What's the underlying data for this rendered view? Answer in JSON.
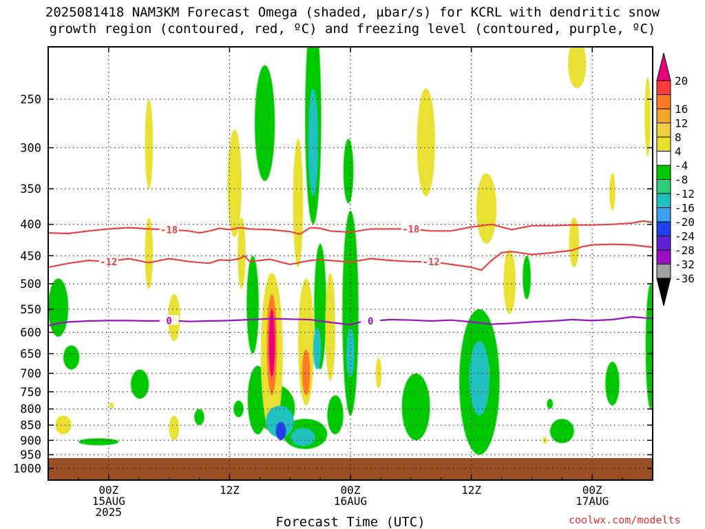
{
  "header": {
    "title_line1": "2025081418 NAM3KM Forecast Omega (shaded, µbar/s) for KCRL with dendritic snow",
    "title_line2": "growth region (contoured, red, ºC) and freezing level (contoured, purple, ºC)"
  },
  "footer": {
    "credit": "coolwx.com/modelts"
  },
  "chart_data": {
    "type": "heatmap",
    "title": "2025081418 NAM3KM Forecast Omega (shaded, µbar/s) for KCRL with dendritic snow growth region (contoured, red, ºC) and freezing level (contoured, purple, ºC)",
    "xlabel": "Forecast Time (UTC)",
    "ylabel": "",
    "x_unit": "forecast hour from 2025-08-14 18Z",
    "xlim": [
      0,
      60
    ],
    "ylim": [
      1040,
      200
    ],
    "y_scale": "log-pressure, inverted",
    "x_ticks": [
      {
        "hour": 6,
        "lines": [
          "00Z",
          "15AUG",
          "2025"
        ]
      },
      {
        "hour": 18,
        "lines": [
          "12Z"
        ]
      },
      {
        "hour": 30,
        "lines": [
          "00Z",
          "16AUG"
        ]
      },
      {
        "hour": 42,
        "lines": [
          "12Z"
        ]
      },
      {
        "hour": 54,
        "lines": [
          "00Z",
          "17AUG"
        ]
      }
    ],
    "y_ticks": [
      "250",
      "300",
      "350",
      "400",
      "450",
      "500",
      "550",
      "600",
      "650",
      "700",
      "750",
      "800",
      "850",
      "900",
      "950",
      "1000"
    ],
    "grid": true,
    "legend": {
      "placement": "right",
      "labels": [
        "20",
        "16",
        "12",
        "8",
        "4",
        "-4",
        "-8",
        "-12",
        "-16",
        "-20",
        "-24",
        "-28",
        "-32",
        "-36"
      ],
      "colors": [
        "#e6007a",
        "#ff3a3a",
        "#ff7a22",
        "#f2a52a",
        "#f0d040",
        "#e8e030",
        "#ffffff",
        "#00c800",
        "#2fcc7a",
        "#20c0c0",
        "#3aa0ee",
        "#2040e8",
        "#6020d0",
        "#9a10c0",
        "#a0a0a0",
        "#000000"
      ]
    },
    "contours": [
      {
        "label": "-18",
        "color": "#ee4040",
        "points": [
          [
            0,
            413
          ],
          [
            2,
            414
          ],
          [
            4,
            410
          ],
          [
            6,
            407
          ],
          [
            8,
            405
          ],
          [
            10,
            407
          ],
          [
            12,
            408
          ],
          [
            14,
            410
          ],
          [
            15,
            413
          ],
          [
            16,
            410
          ],
          [
            17,
            406
          ],
          [
            18,
            408
          ],
          [
            19,
            405
          ],
          [
            20,
            407
          ],
          [
            22,
            408
          ],
          [
            24,
            411
          ],
          [
            25,
            415
          ],
          [
            26,
            405
          ],
          [
            27,
            406
          ],
          [
            28,
            410
          ],
          [
            30,
            412
          ],
          [
            32,
            407
          ],
          [
            34,
            407
          ],
          [
            36,
            407
          ],
          [
            38,
            410
          ],
          [
            40,
            410
          ],
          [
            42,
            404
          ],
          [
            44,
            400
          ],
          [
            46,
            408
          ],
          [
            48,
            402
          ],
          [
            50,
            402
          ],
          [
            52,
            401
          ],
          [
            54,
            401
          ],
          [
            56,
            400
          ],
          [
            58,
            398
          ],
          [
            59,
            395
          ],
          [
            60,
            397
          ]
        ]
      },
      {
        "label": "-12",
        "color": "#ee4040",
        "points": [
          [
            0,
            470
          ],
          [
            2,
            463
          ],
          [
            4,
            458
          ],
          [
            6,
            460
          ],
          [
            8,
            455
          ],
          [
            10,
            462
          ],
          [
            12,
            455
          ],
          [
            14,
            460
          ],
          [
            16,
            463
          ],
          [
            17,
            457
          ],
          [
            18,
            458
          ],
          [
            19,
            455
          ],
          [
            19.5,
            450
          ],
          [
            20,
            460
          ],
          [
            22,
            456
          ],
          [
            24,
            465
          ],
          [
            26,
            458
          ],
          [
            27,
            457
          ],
          [
            28,
            458
          ],
          [
            30,
            461
          ],
          [
            32,
            455
          ],
          [
            34,
            458
          ],
          [
            36,
            460
          ],
          [
            38,
            460
          ],
          [
            40,
            465
          ],
          [
            42,
            470
          ],
          [
            43,
            475
          ],
          [
            44,
            458
          ],
          [
            45,
            445
          ],
          [
            46,
            443
          ],
          [
            48,
            448
          ],
          [
            50,
            445
          ],
          [
            52,
            441
          ],
          [
            53,
            435
          ],
          [
            54,
            432
          ],
          [
            56,
            431
          ],
          [
            58,
            432
          ],
          [
            60,
            436
          ]
        ]
      },
      {
        "label": "0",
        "color": "#9a10c0",
        "points": [
          [
            0,
            585
          ],
          [
            1,
            580
          ],
          [
            2,
            577
          ],
          [
            4,
            575
          ],
          [
            6,
            574
          ],
          [
            8,
            574
          ],
          [
            10,
            575
          ],
          [
            12,
            574
          ],
          [
            14,
            576
          ],
          [
            16,
            575
          ],
          [
            18,
            574
          ],
          [
            20,
            572
          ],
          [
            22,
            570
          ],
          [
            24,
            571
          ],
          [
            26,
            572
          ],
          [
            28,
            578
          ],
          [
            30,
            583
          ],
          [
            31,
            577
          ],
          [
            32,
            575
          ],
          [
            34,
            572
          ],
          [
            36,
            573
          ],
          [
            38,
            575
          ],
          [
            40,
            573
          ],
          [
            42,
            577
          ],
          [
            44,
            582
          ],
          [
            46,
            580
          ],
          [
            48,
            577
          ],
          [
            50,
            575
          ],
          [
            52,
            572
          ],
          [
            54,
            574
          ],
          [
            56,
            572
          ],
          [
            58,
            566
          ],
          [
            60,
            570
          ]
        ]
      }
    ],
    "omega_regions": [
      {
        "level": "-4",
        "center": [
          1,
          550
        ],
        "spread": [
          1.0,
          60
        ]
      },
      {
        "level": "-4",
        "center": [
          2.3,
          660
        ],
        "spread": [
          0.8,
          30
        ]
      },
      {
        "level": "-4",
        "center": [
          9.1,
          730
        ],
        "spread": [
          0.9,
          40
        ]
      },
      {
        "level": "-4",
        "center": [
          5,
          905
        ],
        "spread": [
          2.0,
          12
        ]
      },
      {
        "level": "-4",
        "center": [
          21.5,
          280
        ],
        "spread": [
          1.0,
          60
        ]
      },
      {
        "level": "-4",
        "center": [
          20.3,
          550
        ],
        "spread": [
          0.6,
          100
        ]
      },
      {
        "level": "-4",
        "center": [
          20.8,
          780
        ],
        "spread": [
          1.0,
          100
        ]
      },
      {
        "level": "-4",
        "center": [
          26.3,
          290
        ],
        "spread": [
          0.8,
          110
        ]
      },
      {
        "level": "-12",
        "center": [
          26.3,
          300
        ],
        "spread": [
          0.5,
          60
        ]
      },
      {
        "level": "-4",
        "center": [
          27.0,
          560
        ],
        "spread": [
          0.6,
          130
        ]
      },
      {
        "level": "-12",
        "center": [
          26.7,
          640
        ],
        "spread": [
          0.4,
          50
        ]
      },
      {
        "level": "-4",
        "center": [
          29.8,
          330
        ],
        "spread": [
          0.5,
          40
        ]
      },
      {
        "level": "-4",
        "center": [
          30.0,
          600
        ],
        "spread": [
          0.8,
          220
        ]
      },
      {
        "level": "-12",
        "center": [
          30.0,
          650
        ],
        "spread": [
          0.4,
          60
        ]
      },
      {
        "level": "-4",
        "center": [
          22.5,
          800
        ],
        "spread": [
          2.0,
          70
        ]
      },
      {
        "level": "-12",
        "center": [
          23.0,
          840
        ],
        "spread": [
          1.4,
          50
        ]
      },
      {
        "level": "-20",
        "center": [
          23.1,
          870
        ],
        "spread": [
          0.5,
          30
        ]
      },
      {
        "level": "-4",
        "center": [
          25.5,
          880
        ],
        "spread": [
          2.2,
          50
        ]
      },
      {
        "level": "-12",
        "center": [
          25.3,
          890
        ],
        "spread": [
          1.2,
          30
        ]
      },
      {
        "level": "-4",
        "center": [
          28.5,
          820
        ],
        "spread": [
          0.8,
          60
        ]
      },
      {
        "level": "-4",
        "center": [
          36.5,
          800
        ],
        "spread": [
          1.4,
          100
        ]
      },
      {
        "level": "-4",
        "center": [
          42.8,
          750
        ],
        "spread": [
          2.0,
          200
        ]
      },
      {
        "level": "-12",
        "center": [
          42.8,
          720
        ],
        "spread": [
          1.0,
          100
        ]
      },
      {
        "level": "-4",
        "center": [
          51,
          870
        ],
        "spread": [
          1.2,
          40
        ]
      },
      {
        "level": "-4",
        "center": [
          59.8,
          650
        ],
        "spread": [
          0.5,
          150
        ]
      },
      {
        "level": "-4",
        "center": [
          56,
          730
        ],
        "spread": [
          0.7,
          60
        ]
      },
      {
        "level": "-4",
        "center": [
          15,
          825
        ],
        "spread": [
          0.5,
          25
        ]
      },
      {
        "level": "-4",
        "center": [
          18.9,
          800
        ],
        "spread": [
          0.5,
          25
        ]
      },
      {
        "level": "-4",
        "center": [
          47.5,
          490
        ],
        "spread": [
          0.4,
          40
        ]
      },
      {
        "level": "-4",
        "center": [
          49.8,
          785
        ],
        "spread": [
          0.3,
          15
        ]
      }
    ],
    "omega_positive_regions": [
      {
        "level": "4",
        "center": [
          1.5,
          850
        ],
        "spread": [
          0.8,
          30
        ]
      },
      {
        "level": "4",
        "center": [
          10.0,
          300
        ],
        "spread": [
          0.4,
          50
        ]
      },
      {
        "level": "4",
        "center": [
          10.0,
          450
        ],
        "spread": [
          0.4,
          60
        ]
      },
      {
        "level": "4",
        "center": [
          12.5,
          570
        ],
        "spread": [
          0.6,
          50
        ]
      },
      {
        "level": "4",
        "center": [
          12.5,
          860
        ],
        "spread": [
          0.5,
          40
        ]
      },
      {
        "level": "4",
        "center": [
          18.5,
          350
        ],
        "spread": [
          0.7,
          70
        ]
      },
      {
        "level": "4",
        "center": [
          19.2,
          450
        ],
        "spread": [
          0.4,
          60
        ]
      },
      {
        "level": "4",
        "center": [
          22.2,
          680
        ],
        "spread": [
          1.1,
          200
        ]
      },
      {
        "level": "12",
        "center": [
          22.2,
          640
        ],
        "spread": [
          0.5,
          120
        ]
      },
      {
        "level": "20",
        "center": [
          22.2,
          630
        ],
        "spread": [
          0.3,
          80
        ]
      },
      {
        "level": "4",
        "center": [
          24.8,
          380
        ],
        "spread": [
          0.5,
          90
        ]
      },
      {
        "level": "4",
        "center": [
          25.6,
          640
        ],
        "spread": [
          0.8,
          150
        ]
      },
      {
        "level": "12",
        "center": [
          25.6,
          700
        ],
        "spread": [
          0.4,
          60
        ]
      },
      {
        "level": "4",
        "center": [
          28.0,
          600
        ],
        "spread": [
          0.5,
          120
        ]
      },
      {
        "level": "4",
        "center": [
          37.5,
          300
        ],
        "spread": [
          0.9,
          60
        ]
      },
      {
        "level": "4",
        "center": [
          43.5,
          380
        ],
        "spread": [
          1.0,
          50
        ]
      },
      {
        "level": "4",
        "center": [
          45.8,
          500
        ],
        "spread": [
          0.6,
          60
        ]
      },
      {
        "level": "4",
        "center": [
          52.5,
          220
        ],
        "spread": [
          0.9,
          20
        ]
      },
      {
        "level": "4",
        "center": [
          52.2,
          430
        ],
        "spread": [
          0.5,
          40
        ]
      },
      {
        "level": "4",
        "center": [
          56.0,
          355
        ],
        "spread": [
          0.3,
          25
        ]
      },
      {
        "level": "4",
        "center": [
          59.5,
          270
        ],
        "spread": [
          0.3,
          40
        ]
      },
      {
        "level": "4",
        "center": [
          32.8,
          700
        ],
        "spread": [
          0.3,
          40
        ]
      },
      {
        "level": "4",
        "center": [
          43.5,
          700
        ],
        "spread": [
          0.3,
          30
        ]
      },
      {
        "level": "4",
        "center": [
          6.3,
          790
        ],
        "spread": [
          0.2,
          10
        ]
      },
      {
        "level": "4",
        "center": [
          49.3,
          900
        ],
        "spread": [
          0.2,
          12
        ]
      }
    ]
  }
}
